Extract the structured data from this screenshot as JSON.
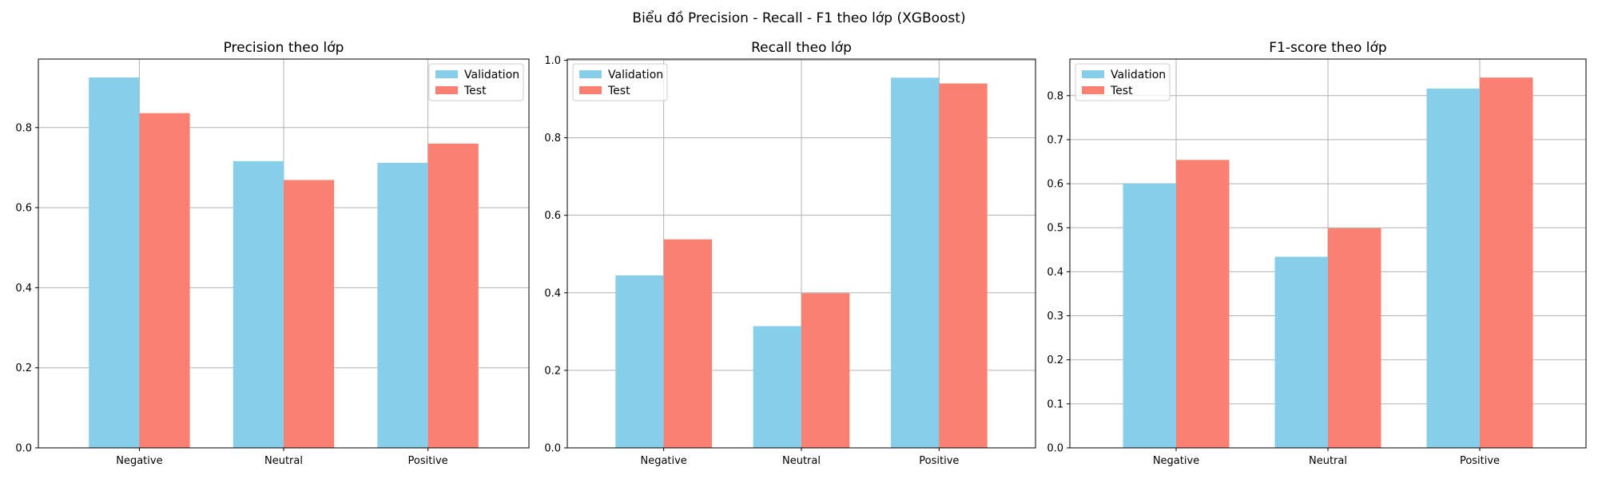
{
  "figure": {
    "suptitle": "Biểu đồ Precision - Recall - F1 theo lớp (XGBoost)"
  },
  "chart_data": [
    {
      "type": "bar",
      "title": "Precision theo lớp",
      "xlabel": "",
      "ylabel": "",
      "categories": [
        "Negative",
        "Neutral",
        "Positive"
      ],
      "series": [
        {
          "name": "Validation",
          "color": "#87ceeb",
          "values": [
            0.925,
            0.716,
            0.712
          ]
        },
        {
          "name": "Test",
          "color": "#fa8072",
          "values": [
            0.836,
            0.669,
            0.76
          ]
        }
      ],
      "ylim": [
        0,
        0.971
      ],
      "yticks": [
        0.0,
        0.2,
        0.4,
        0.6,
        0.8
      ],
      "ytick_labels": [
        "0.0",
        "0.2",
        "0.4",
        "0.6",
        "0.8"
      ],
      "grid": true,
      "legend": "upper right"
    },
    {
      "type": "bar",
      "title": "Recall theo lớp",
      "xlabel": "",
      "ylabel": "",
      "categories": [
        "Negative",
        "Neutral",
        "Positive"
      ],
      "series": [
        {
          "name": "Validation",
          "color": "#87ceeb",
          "values": [
            0.445,
            0.314,
            0.955
          ]
        },
        {
          "name": "Test",
          "color": "#fa8072",
          "values": [
            0.538,
            0.399,
            0.94
          ]
        }
      ],
      "ylim": [
        0,
        1.003
      ],
      "yticks": [
        0.0,
        0.2,
        0.4,
        0.6,
        0.8,
        1.0
      ],
      "ytick_labels": [
        "0.0",
        "0.2",
        "0.4",
        "0.6",
        "0.8",
        "1.0"
      ],
      "grid": true,
      "legend": "upper left"
    },
    {
      "type": "bar",
      "title": "F1-score theo lớp",
      "xlabel": "",
      "ylabel": "",
      "categories": [
        "Negative",
        "Neutral",
        "Positive"
      ],
      "series": [
        {
          "name": "Validation",
          "color": "#87ceeb",
          "values": [
            0.6,
            0.434,
            0.816
          ]
        },
        {
          "name": "Test",
          "color": "#fa8072",
          "values": [
            0.654,
            0.499,
            0.841
          ]
        }
      ],
      "ylim": [
        0,
        0.883
      ],
      "yticks": [
        0.0,
        0.1,
        0.2,
        0.3,
        0.4,
        0.5,
        0.6,
        0.7,
        0.8
      ],
      "ytick_labels": [
        "0.0",
        "0.1",
        "0.2",
        "0.3",
        "0.4",
        "0.5",
        "0.6",
        "0.7",
        "0.8"
      ],
      "grid": true,
      "legend": "upper left"
    }
  ]
}
